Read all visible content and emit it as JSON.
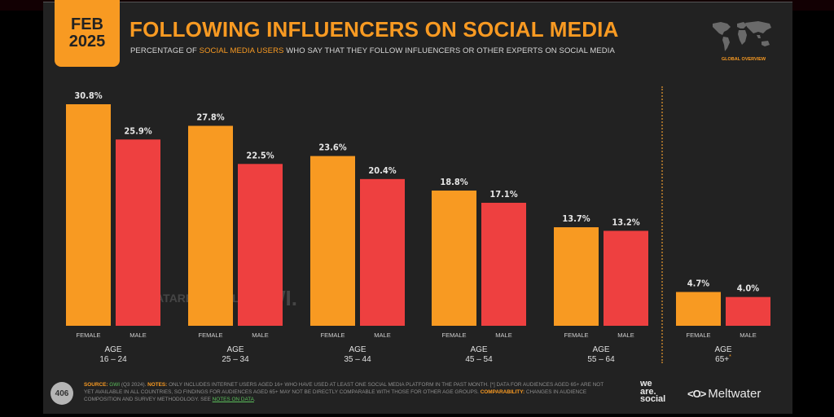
{
  "slide": {
    "date_month": "FEB",
    "date_year": "2025",
    "title": "FOLLOWING INFLUENCERS ON SOCIAL MEDIA",
    "subtitle_pre": "PERCENTAGE OF ",
    "subtitle_highlight": "SOCIAL MEDIA USERS",
    "subtitle_post": " WHO SAY THAT THEY FOLLOW INFLUENCERS OR OTHER EXPERTS ON SOCIAL MEDIA",
    "globe_label": "GLOBAL OVERVIEW",
    "globe_icon": "world-map-icon",
    "watermark_datareportal": "DATAREPORTAL",
    "watermark_gwi": "GWI.",
    "page_number": "406"
  },
  "footnote": {
    "source_label": "SOURCE:",
    "source_value": "GWI",
    "source_rest": " (Q3 2024). ",
    "notes_label": "NOTES:",
    "notes_text": " ONLY INCLUDES INTERNET USERS AGED 16+ WHO HAVE USED AT LEAST ONE SOCIAL MEDIA PLATFORM IN THE PAST MONTH. [*] DATA FOR AUDIENCES AGED 65+ ARE NOT YET AVAILABLE IN ALL COUNTRIES, SO FINDINGS FOR AUDIENCES AGED 65+ MAY NOT BE DIRECTLY COMPARABLE WITH THOSE FOR OTHER AGE GROUPS. ",
    "comparability_label": "COMPARABILITY:",
    "comparability_text": " CHANGES IN AUDIENCE COMPOSITION AND SURVEY METHODOLOGY. SEE ",
    "link_text": "NOTES ON DATA",
    "end": "."
  },
  "logos": {
    "we_are_social": [
      "we",
      "are.",
      "social"
    ],
    "meltwater_icon": "<O>",
    "meltwater": "Meltwater"
  },
  "colors": {
    "female": "#F89A22",
    "male": "#EE4040",
    "accent": "#F89A22",
    "background": "#222222"
  },
  "chart_data": {
    "type": "bar",
    "title": "FOLLOWING INFLUENCERS ON SOCIAL MEDIA",
    "subtitle": "PERCENTAGE OF SOCIAL MEDIA USERS WHO SAY THAT THEY FOLLOW INFLUENCERS OR OTHER EXPERTS ON SOCIAL MEDIA",
    "categories": [
      "16 – 24",
      "25 – 34",
      "35 – 44",
      "45 – 54",
      "55 – 64",
      "65+"
    ],
    "category_prefix": "AGE",
    "category_footnote_marker": [
      "",
      "",
      "",
      "",
      "",
      "*"
    ],
    "series": [
      {
        "name": "FEMALE",
        "values": [
          30.8,
          27.8,
          23.6,
          18.8,
          13.7,
          4.7
        ]
      },
      {
        "name": "MALE",
        "values": [
          25.9,
          22.5,
          20.4,
          17.1,
          13.2,
          4.0
        ]
      }
    ],
    "value_format": "percent_1dp",
    "ylim": [
      0,
      30.8
    ],
    "grid": false,
    "legend": "none (series labels below each bar)",
    "separator_before_category": "65+"
  }
}
